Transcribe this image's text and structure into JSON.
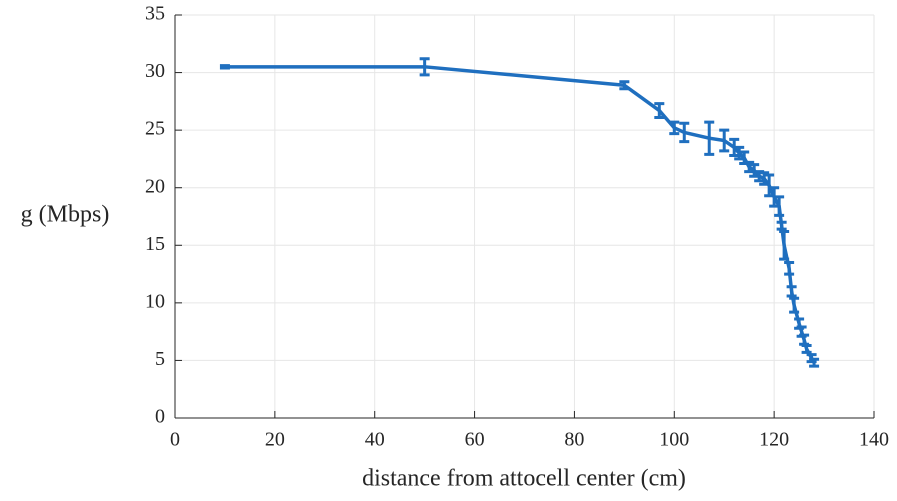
{
  "chart_data": {
    "type": "errorbar-line",
    "xlabel": "distance from attocell center (cm)",
    "ylabel": "g (Mbps)",
    "color": "#1f6fbf",
    "x": [
      10,
      50,
      90,
      97,
      100,
      102,
      107,
      110,
      112,
      113,
      114,
      115,
      116,
      117,
      118,
      119,
      120,
      121,
      121.5,
      122,
      123,
      123.5,
      124,
      125,
      125.5,
      126,
      126.5,
      127.5,
      128
    ],
    "values": [
      30.5,
      30.5,
      28.9,
      26.7,
      25.2,
      24.8,
      24.3,
      24.1,
      23.5,
      23.0,
      22.6,
      21.8,
      21.5,
      21.0,
      20.8,
      20.2,
      19.2,
      18.4,
      16.7,
      15.0,
      13.0,
      11.0,
      9.8,
      8.2,
      7.5,
      6.8,
      6.0,
      5.2,
      4.8
    ],
    "errors": [
      0.1,
      0.7,
      0.3,
      0.6,
      0.5,
      0.8,
      1.4,
      0.9,
      0.7,
      0.5,
      0.5,
      0.4,
      0.5,
      0.4,
      0.5,
      0.9,
      0.8,
      0.8,
      0.3,
      1.2,
      0.5,
      0.4,
      0.6,
      0.4,
      0.4,
      0.4,
      0.3,
      0.3,
      0.3
    ],
    "xlim": [
      0,
      140
    ],
    "xticks": [
      0,
      20,
      40,
      60,
      80,
      100,
      120,
      140
    ],
    "ylim": [
      0,
      35
    ],
    "yticks": [
      0,
      5,
      10,
      15,
      20,
      25,
      30,
      35
    ],
    "grid": true
  }
}
